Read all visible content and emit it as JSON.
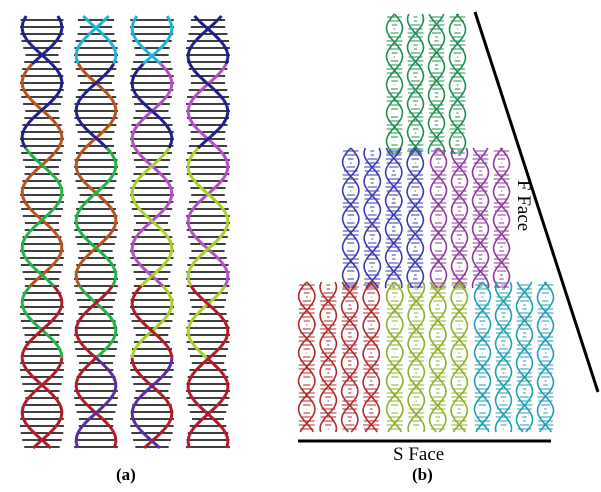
{
  "figure": {
    "panel_a_label": "(a)",
    "panel_b_label": "(b)",
    "s_face_label": "S Face",
    "f_face_label": "F Face"
  },
  "colors": {
    "navy": "#1f1f8c",
    "cyan": "#1fb4d6",
    "orange": "#b8521c",
    "magenta": "#b24fc2",
    "green": "#22b24a",
    "lime": "#a8cf2a",
    "red": "#b01a2a",
    "purple": "#5a2aa0",
    "dark_green": "#1f8f4f",
    "blue": "#3a3ab4",
    "violet": "#8c3aa0",
    "crimson": "#b02a2a",
    "olive": "#8cb02a",
    "teal": "#1f9fb4",
    "rung": "#000000"
  }
}
